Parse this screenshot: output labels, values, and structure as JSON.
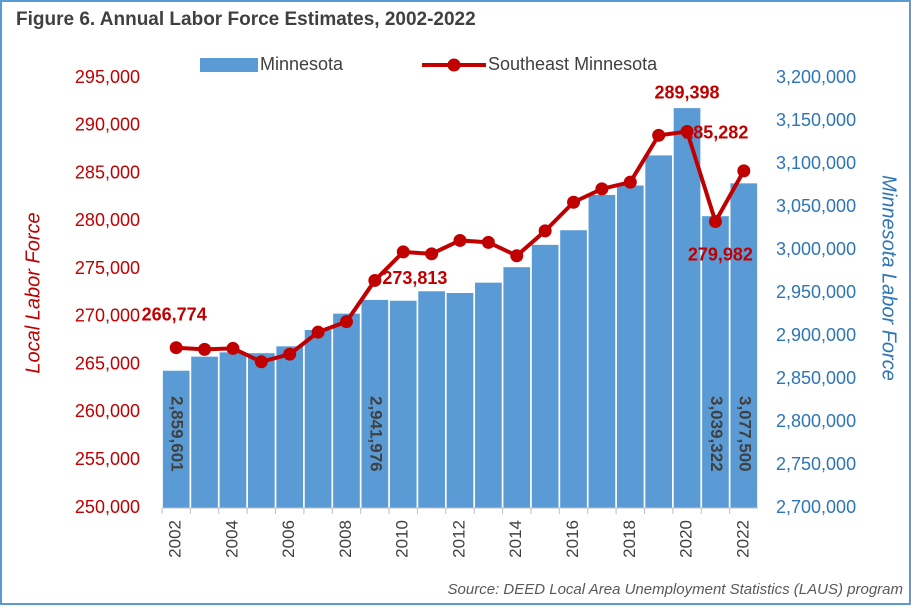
{
  "chart_data": {
    "type": "bar-line",
    "title": "Figure 6. Annual Labor Force Estimates, 2002-2022",
    "ylabel": "Local Labor Force",
    "y2label": "Minnesota Labor Force",
    "source": "Source: DEED Local Area Unemployment Statistics (LAUS) program",
    "categories": [
      "2002",
      null,
      "2004",
      null,
      "2006",
      null,
      "2008",
      null,
      "2010",
      null,
      "2012",
      null,
      "2014",
      null,
      "2016",
      null,
      "2018",
      null,
      "2020",
      null,
      "2022"
    ],
    "ylim": [
      250000,
      295000
    ],
    "yticks": [
      {
        "value": 250000,
        "label": "250,000"
      },
      {
        "value": 255000,
        "label": "255,000"
      },
      {
        "value": 260000,
        "label": "260,000"
      },
      {
        "value": 265000,
        "label": "265,000"
      },
      {
        "value": 270000,
        "label": "270,000"
      },
      {
        "value": 275000,
        "label": "275,000"
      },
      {
        "value": 280000,
        "label": "280,000"
      },
      {
        "value": 285000,
        "label": "285,000"
      },
      {
        "value": 290000,
        "label": "290,000"
      },
      {
        "value": 295000,
        "label": "295,000"
      }
    ],
    "y2lim": [
      2700000,
      3200000
    ],
    "y2ticks": [
      {
        "value": 2700000,
        "label": "2,700,000"
      },
      {
        "value": 2750000,
        "label": "2,750,000"
      },
      {
        "value": 2800000,
        "label": "2,800,000"
      },
      {
        "value": 2850000,
        "label": "2,850,000"
      },
      {
        "value": 2900000,
        "label": "2,900,000"
      },
      {
        "value": 2950000,
        "label": "2,950,000"
      },
      {
        "value": 3000000,
        "label": "3,000,000"
      },
      {
        "value": 3050000,
        "label": "3,050,000"
      },
      {
        "value": 3100000,
        "label": "3,100,000"
      },
      {
        "value": 3150000,
        "label": "3,150,000"
      },
      {
        "value": 3200000,
        "label": "3,200,000"
      }
    ],
    "series": [
      {
        "name": "Minnesota",
        "type": "bar",
        "axis": "y2",
        "color": "#5b9bd5",
        "values": [
          2859601,
          2876000,
          2881000,
          2880000,
          2888000,
          2907000,
          2926000,
          2941976,
          2941000,
          2952000,
          2950000,
          2962000,
          2980000,
          3006000,
          3023000,
          3064000,
          3075000,
          3110000,
          3165000,
          3039322,
          3077500
        ],
        "value_labels": [
          "2,859,601",
          null,
          null,
          null,
          null,
          null,
          null,
          "2,941,976",
          null,
          null,
          null,
          null,
          null,
          null,
          null,
          null,
          null,
          null,
          null,
          "3,039,322",
          "3,077,500"
        ]
      },
      {
        "name": "Southeast Minnesota",
        "type": "line",
        "color": "#c00000",
        "values": [
          266774,
          266600,
          266700,
          265300,
          266100,
          268400,
          269500,
          273813,
          276800,
          276600,
          278000,
          277800,
          276400,
          279000,
          282000,
          283400,
          284100,
          289000,
          289398,
          279982,
          285282
        ],
        "value_labels": [
          "266,774",
          null,
          null,
          null,
          null,
          null,
          null,
          "273,813",
          null,
          null,
          null,
          null,
          null,
          null,
          null,
          null,
          null,
          null,
          "289,398",
          "279,982",
          "285,282"
        ]
      }
    ]
  }
}
